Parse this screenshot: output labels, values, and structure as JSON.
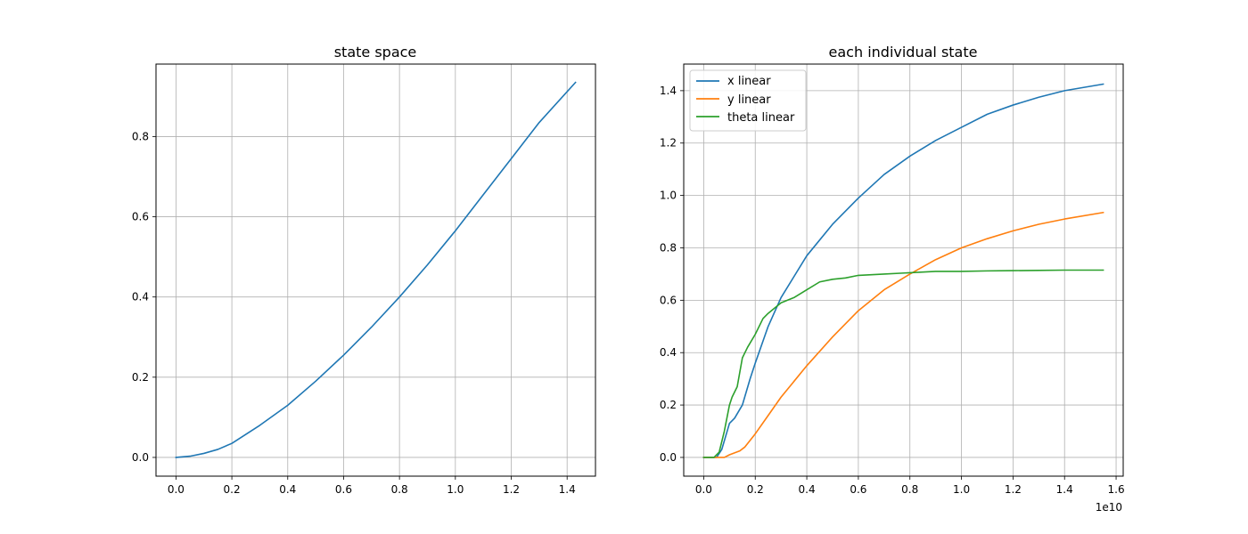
{
  "chart_data": [
    {
      "type": "line",
      "title": "state space",
      "xlabel": "",
      "ylabel": "",
      "xlim": [
        -0.0715,
        1.5015
      ],
      "ylim": [
        -0.0467,
        0.9807
      ],
      "grid": true,
      "xticks": [
        0.0,
        0.2,
        0.4,
        0.6,
        0.8,
        1.0,
        1.2,
        1.4
      ],
      "xtick_labels": [
        "0.0",
        "0.2",
        "0.4",
        "0.6",
        "0.8",
        "1.0",
        "1.2",
        "1.4"
      ],
      "yticks": [
        0.0,
        0.2,
        0.4,
        0.6,
        0.8
      ],
      "ytick_labels": [
        "0.0",
        "0.2",
        "0.4",
        "0.6",
        "0.8"
      ],
      "series": [
        {
          "color": "#1f77b4",
          "x": [
            0.0,
            0.05,
            0.1,
            0.15,
            0.2,
            0.3,
            0.4,
            0.5,
            0.6,
            0.7,
            0.8,
            0.9,
            1.0,
            1.1,
            1.2,
            1.3,
            1.43
          ],
          "y": [
            0.0,
            0.003,
            0.01,
            0.02,
            0.035,
            0.08,
            0.13,
            0.19,
            0.255,
            0.325,
            0.4,
            0.48,
            0.565,
            0.655,
            0.745,
            0.835,
            0.935
          ]
        }
      ]
    },
    {
      "type": "line",
      "title": "each individual state",
      "xlabel": "",
      "ylabel": "",
      "x_offset_label": "1e10",
      "xlim": [
        -0.0775,
        1.6275
      ],
      "ylim": [
        -0.0715,
        1.5015
      ],
      "grid": true,
      "legend": "upper-left",
      "xticks": [
        0.0,
        0.2,
        0.4,
        0.6,
        0.8,
        1.0,
        1.2,
        1.4,
        1.6
      ],
      "xtick_labels": [
        "0.0",
        "0.2",
        "0.4",
        "0.6",
        "0.8",
        "1.0",
        "1.2",
        "1.4",
        "1.6"
      ],
      "yticks": [
        0.0,
        0.2,
        0.4,
        0.6,
        0.8,
        1.0,
        1.2,
        1.4
      ],
      "ytick_labels": [
        "0.0",
        "0.2",
        "0.4",
        "0.6",
        "0.8",
        "1.0",
        "1.2",
        "1.4"
      ],
      "series": [
        {
          "name": "x linear",
          "color": "#1f77b4",
          "x": [
            0.0,
            0.05,
            0.07,
            0.1,
            0.12,
            0.15,
            0.18,
            0.2,
            0.25,
            0.3,
            0.35,
            0.4,
            0.5,
            0.6,
            0.7,
            0.8,
            0.9,
            1.0,
            1.1,
            1.2,
            1.3,
            1.4,
            1.55
          ],
          "y": [
            0.0,
            0.0,
            0.03,
            0.13,
            0.15,
            0.2,
            0.3,
            0.36,
            0.5,
            0.61,
            0.69,
            0.77,
            0.89,
            0.99,
            1.08,
            1.15,
            1.21,
            1.26,
            1.31,
            1.345,
            1.375,
            1.4,
            1.425
          ]
        },
        {
          "name": "y linear",
          "color": "#ff7f0e",
          "x": [
            0.0,
            0.05,
            0.08,
            0.1,
            0.14,
            0.16,
            0.2,
            0.25,
            0.3,
            0.4,
            0.5,
            0.6,
            0.7,
            0.8,
            0.9,
            1.0,
            1.1,
            1.2,
            1.3,
            1.4,
            1.55
          ],
          "y": [
            0.0,
            0.0,
            0.0,
            0.01,
            0.025,
            0.04,
            0.09,
            0.16,
            0.23,
            0.35,
            0.46,
            0.56,
            0.64,
            0.7,
            0.755,
            0.8,
            0.835,
            0.865,
            0.89,
            0.91,
            0.935
          ]
        },
        {
          "name": "theta linear",
          "color": "#2ca02c",
          "x": [
            0.0,
            0.04,
            0.06,
            0.08,
            0.1,
            0.11,
            0.13,
            0.15,
            0.17,
            0.2,
            0.23,
            0.25,
            0.3,
            0.35,
            0.4,
            0.45,
            0.5,
            0.55,
            0.6,
            0.7,
            0.8,
            0.9,
            1.0,
            1.1,
            1.2,
            1.3,
            1.4,
            1.55
          ],
          "y": [
            0.0,
            0.0,
            0.02,
            0.1,
            0.2,
            0.23,
            0.27,
            0.38,
            0.42,
            0.47,
            0.53,
            0.55,
            0.59,
            0.61,
            0.64,
            0.67,
            0.68,
            0.685,
            0.695,
            0.7,
            0.705,
            0.71,
            0.71,
            0.712,
            0.713,
            0.714,
            0.715,
            0.715
          ]
        }
      ]
    }
  ]
}
